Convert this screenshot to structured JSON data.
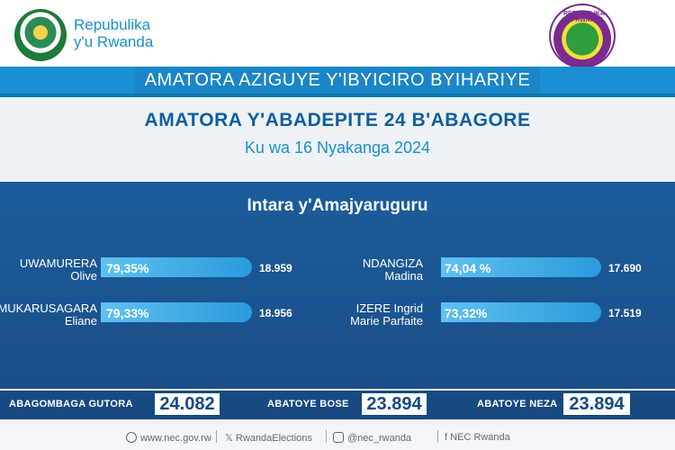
{
  "header": {
    "brand_line1": "Repubulika",
    "brand_line2": "y'u Rwanda",
    "nec_ring_text": "REPUBULIKA Y'U RWANDA"
  },
  "ribbon": {
    "text": "AMATORA AZIGUYE Y'IBYICIRO BYIHARIYE"
  },
  "title": "AMATORA Y'ABADEPITE 24 B'ABAGORE",
  "date": "Ku wa 16 Nyakanga 2024",
  "region": "Intara y'Amajyaruguru",
  "candidates": [
    {
      "name_line1": "UWAMURERA",
      "name_line2": "Olive",
      "percent": "79,35%",
      "percent_value": 79.35,
      "votes": "18.959"
    },
    {
      "name_line1": "MUKARUSAGARA",
      "name_line2": "Eliane",
      "percent": "79,33%",
      "percent_value": 79.33,
      "votes": "18.956"
    },
    {
      "name_line1": "NDANGIZA",
      "name_line2": "Madina",
      "percent": "74,04 %",
      "percent_value": 74.04,
      "votes": "17.690"
    },
    {
      "name_line1": "IZERE Ingrid",
      "name_line2": "Marie Parfaite",
      "percent": "73,32%",
      "percent_value": 73.32,
      "votes": "17.519"
    }
  ],
  "totals": {
    "registered_label": "ABAGOMBAGA GUTORA",
    "registered_value": "24.082",
    "voted_label": "ABATOYE BOSE",
    "voted_value": "23.894",
    "valid_label": "ABATOYE NEZA",
    "valid_value": "23.894"
  },
  "footer": {
    "website": "www.nec.gov.rw",
    "x_handle": "RwandaElections",
    "social_handle": "@nec_rwanda",
    "facebook": "NEC Rwanda"
  },
  "colors": {
    "primary_blue": "#1b8fcf",
    "panel_blue": "#1a5d9b",
    "bar_blue": "#2a9bdb"
  }
}
